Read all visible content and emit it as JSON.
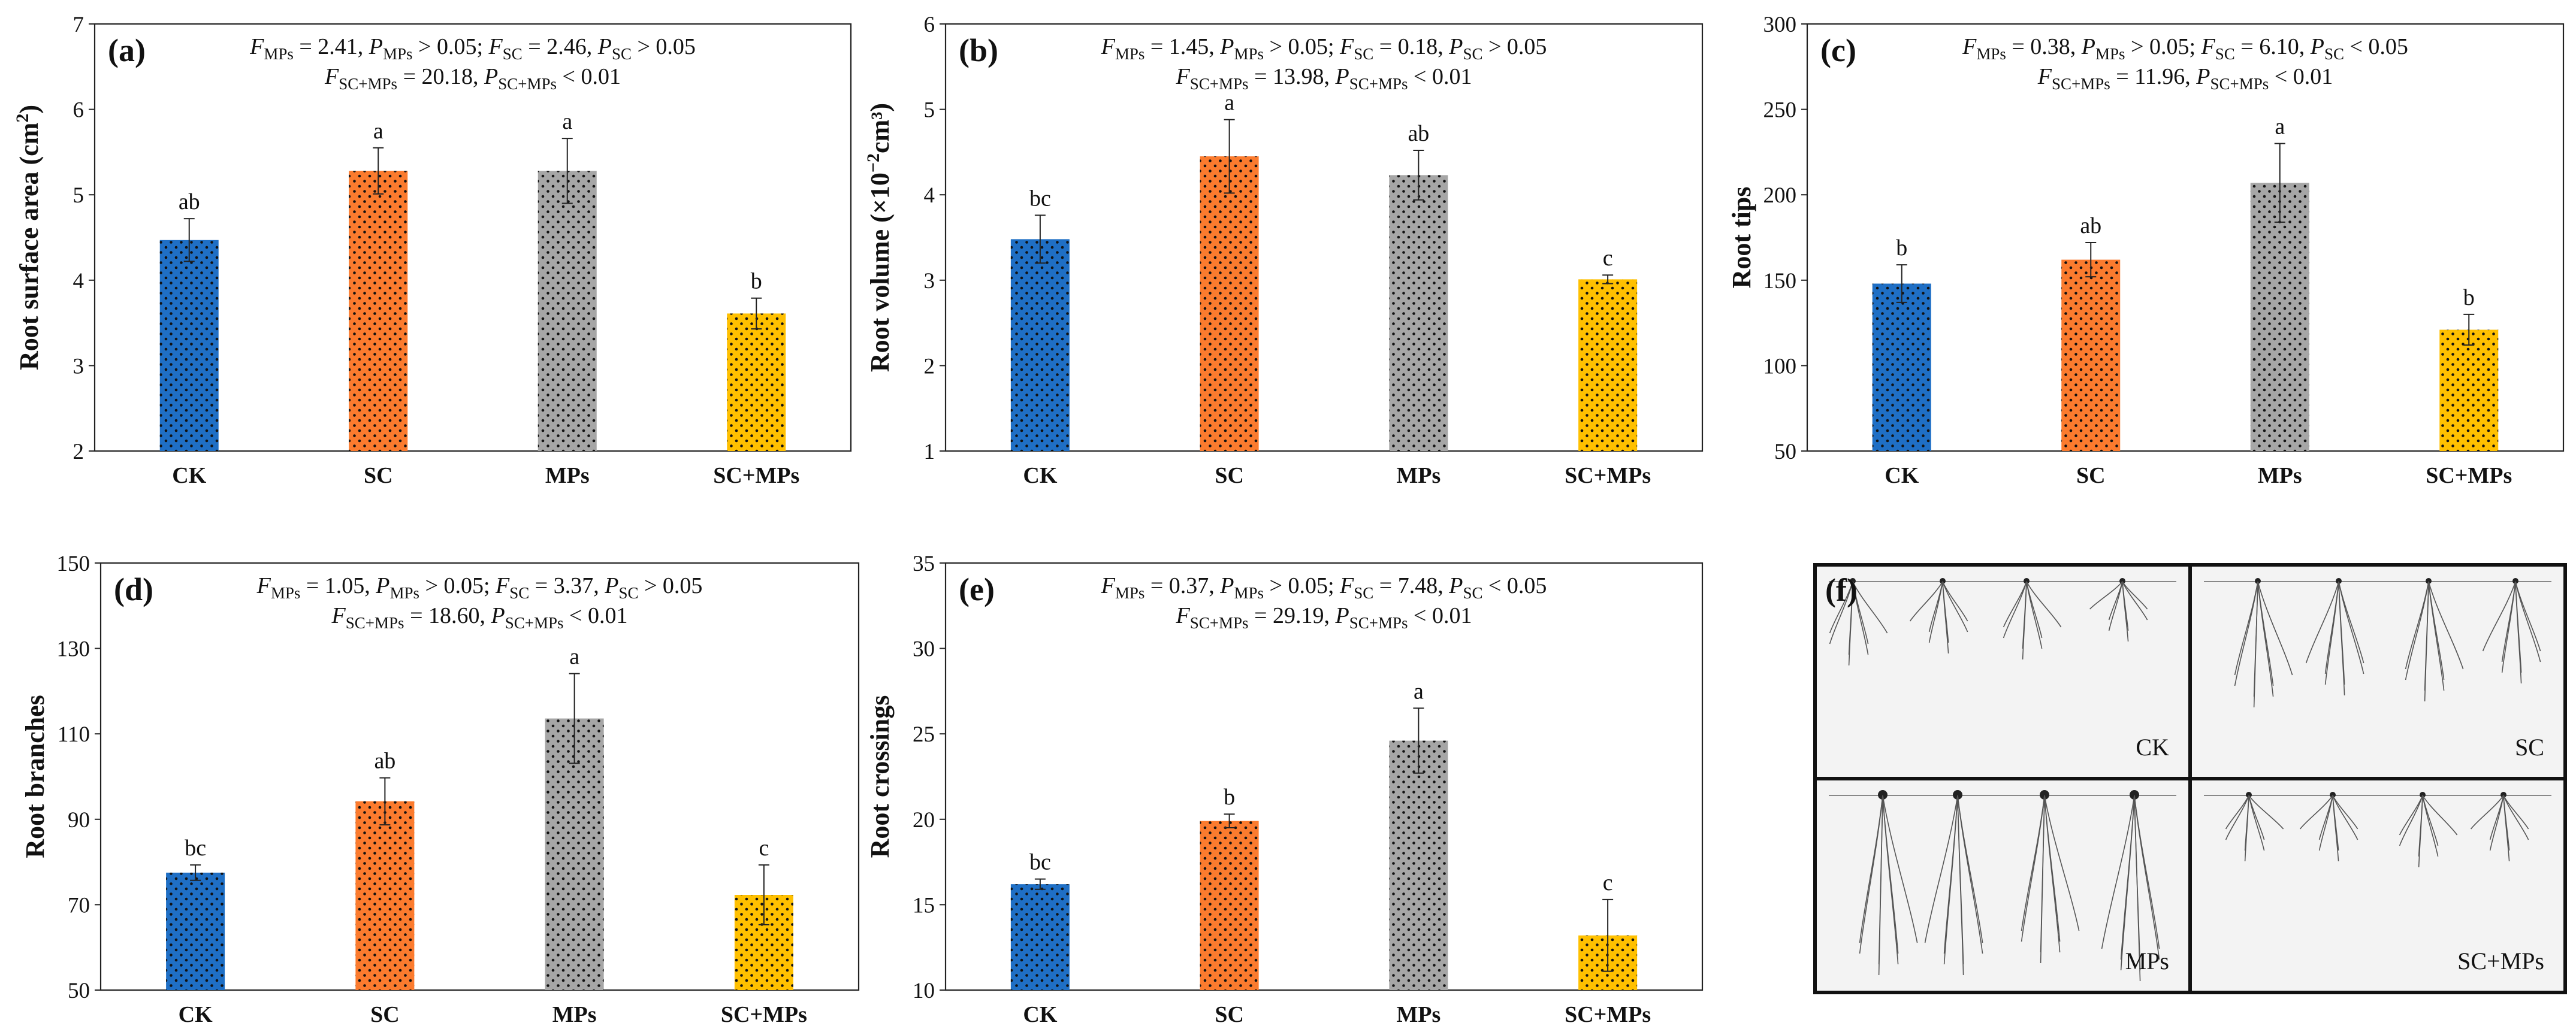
{
  "colors": {
    "CK": "#1f6fc5",
    "SC": "#fb7b2e",
    "MPs": "#a6a6a6",
    "SC+MPs": "#ffc000"
  },
  "chart_data": [
    {
      "type": "bar",
      "panel": "(a)",
      "categories": [
        "CK",
        "SC",
        "MPs",
        "SC+MPs"
      ],
      "values": [
        4.47,
        5.28,
        5.28,
        3.61
      ],
      "errors": [
        0.25,
        0.27,
        0.38,
        0.18
      ],
      "letters": [
        "ab",
        "a",
        "a",
        "b"
      ],
      "ylabel_main": "Root surface area (cm",
      "ylabel_sup": "2",
      "ylabel_tail": ")",
      "ylim": [
        2,
        7
      ],
      "yticks": [
        "2",
        "3",
        "4",
        "5",
        "6",
        "7"
      ],
      "stats": [
        [
          [
            "F",
            "i"
          ],
          [
            "MPs",
            "sub"
          ],
          [
            " = 2.41, ",
            "n"
          ],
          [
            "P",
            "i"
          ],
          [
            "MPs",
            "sub"
          ],
          [
            " > 0.05; ",
            "n"
          ],
          [
            "F",
            "i"
          ],
          [
            "SC",
            "sub"
          ],
          [
            " = 2.46, ",
            "n"
          ],
          [
            "P",
            "i"
          ],
          [
            "SC",
            "sub"
          ],
          [
            " > 0.05",
            "n"
          ]
        ],
        [
          [
            "F",
            "i"
          ],
          [
            "SC+MPs",
            "sub"
          ],
          [
            " = 20.18, ",
            "n"
          ],
          [
            "P",
            "i"
          ],
          [
            "SC+MPs",
            "sub"
          ],
          [
            " < 0.01",
            "n"
          ]
        ]
      ]
    },
    {
      "type": "bar",
      "panel": "(b)",
      "categories": [
        "CK",
        "SC",
        "MPs",
        "SC+MPs"
      ],
      "values": [
        3.48,
        4.45,
        4.23,
        3.01
      ],
      "errors": [
        0.28,
        0.43,
        0.29,
        0.05
      ],
      "letters": [
        "bc",
        "a",
        "ab",
        "c"
      ],
      "ylabel_main": "Root volume (×10",
      "ylabel_sup": "−2",
      "ylabel_tail": "cm³)",
      "ylim": [
        1,
        6
      ],
      "yticks": [
        "1",
        "2",
        "3",
        "4",
        "5",
        "6"
      ],
      "stats": [
        [
          [
            "F",
            "i"
          ],
          [
            "MPs",
            "sub"
          ],
          [
            " = 1.45, ",
            "n"
          ],
          [
            "P",
            "i"
          ],
          [
            "MPs",
            "sub"
          ],
          [
            " > 0.05; ",
            "n"
          ],
          [
            "F",
            "i"
          ],
          [
            "SC",
            "sub"
          ],
          [
            " = 0.18, ",
            "n"
          ],
          [
            "P",
            "i"
          ],
          [
            "SC",
            "sub"
          ],
          [
            " > 0.05",
            "n"
          ]
        ],
        [
          [
            "F",
            "i"
          ],
          [
            "SC+MPs",
            "sub"
          ],
          [
            " = 13.98, ",
            "n"
          ],
          [
            "P",
            "i"
          ],
          [
            "SC+MPs",
            "sub"
          ],
          [
            " < 0.01",
            "n"
          ]
        ]
      ]
    },
    {
      "type": "bar",
      "panel": "(c)",
      "categories": [
        "CK",
        "SC",
        "MPs",
        "SC+MPs"
      ],
      "values": [
        148,
        162,
        207,
        121
      ],
      "errors": [
        11,
        10,
        23,
        9
      ],
      "letters": [
        "b",
        "ab",
        "a",
        "b"
      ],
      "ylabel_main": "Root tips",
      "ylabel_sup": "",
      "ylabel_tail": "",
      "ylim": [
        50,
        300
      ],
      "yticks": [
        "50",
        "100",
        "150",
        "200",
        "250",
        "300"
      ],
      "stats": [
        [
          [
            "F",
            "i"
          ],
          [
            "MPs",
            "sub"
          ],
          [
            " = 0.38, ",
            "n"
          ],
          [
            "P",
            "i"
          ],
          [
            "MPs",
            "sub"
          ],
          [
            " > 0.05; ",
            "n"
          ],
          [
            "F",
            "i"
          ],
          [
            "SC",
            "sub"
          ],
          [
            " = 6.10, ",
            "n"
          ],
          [
            "P",
            "i"
          ],
          [
            "SC",
            "sub"
          ],
          [
            " < 0.05",
            "n"
          ]
        ],
        [
          [
            "F",
            "i"
          ],
          [
            "SC+MPs",
            "sub"
          ],
          [
            " = 11.96, ",
            "n"
          ],
          [
            "P",
            "i"
          ],
          [
            "SC+MPs",
            "sub"
          ],
          [
            " < 0.01",
            "n"
          ]
        ]
      ]
    },
    {
      "type": "bar",
      "panel": "(d)",
      "categories": [
        "CK",
        "SC",
        "MPs",
        "SC+MPs"
      ],
      "values": [
        77.5,
        94.2,
        113.6,
        72.3
      ],
      "errors": [
        1.8,
        5.5,
        10.5,
        7.0
      ],
      "letters": [
        "bc",
        "ab",
        "a",
        "c"
      ],
      "ylabel_main": "Root branches",
      "ylabel_sup": "",
      "ylabel_tail": "",
      "ylim": [
        50,
        150
      ],
      "yticks": [
        "50",
        "70",
        "90",
        "110",
        "130",
        "150"
      ],
      "stats": [
        [
          [
            "F",
            "i"
          ],
          [
            "MPs",
            "sub"
          ],
          [
            " = 1.05, ",
            "n"
          ],
          [
            "P",
            "i"
          ],
          [
            "MPs",
            "sub"
          ],
          [
            " > 0.05; ",
            "n"
          ],
          [
            "F",
            "i"
          ],
          [
            "SC",
            "sub"
          ],
          [
            " = 3.37, ",
            "n"
          ],
          [
            "P",
            "i"
          ],
          [
            "SC",
            "sub"
          ],
          [
            " > 0.05",
            "n"
          ]
        ],
        [
          [
            "F",
            "i"
          ],
          [
            "SC+MPs",
            "sub"
          ],
          [
            " = 18.60, ",
            "n"
          ],
          [
            "P",
            "i"
          ],
          [
            "SC+MPs",
            "sub"
          ],
          [
            " < 0.01",
            "n"
          ]
        ]
      ]
    },
    {
      "type": "bar",
      "panel": "(e)",
      "categories": [
        "CK",
        "SC",
        "MPs",
        "SC+MPs"
      ],
      "values": [
        16.2,
        19.9,
        24.6,
        13.2
      ],
      "errors": [
        0.3,
        0.4,
        1.9,
        2.1
      ],
      "letters": [
        "bc",
        "b",
        "a",
        "c"
      ],
      "ylabel_main": "Root crossings",
      "ylabel_sup": "",
      "ylabel_tail": "",
      "ylim": [
        10,
        35
      ],
      "yticks": [
        "10",
        "15",
        "20",
        "25",
        "30",
        "35"
      ],
      "stats": [
        [
          [
            "F",
            "i"
          ],
          [
            "MPs",
            "sub"
          ],
          [
            " = 0.37, ",
            "n"
          ],
          [
            "P",
            "i"
          ],
          [
            "MPs",
            "sub"
          ],
          [
            " > 0.05; ",
            "n"
          ],
          [
            "F",
            "i"
          ],
          [
            "SC",
            "sub"
          ],
          [
            " = 7.48, ",
            "n"
          ],
          [
            "P",
            "i"
          ],
          [
            "SC",
            "sub"
          ],
          [
            " < 0.05",
            "n"
          ]
        ],
        [
          [
            "F",
            "i"
          ],
          [
            "SC+MPs",
            "sub"
          ],
          [
            " = 29.19, ",
            "n"
          ],
          [
            "P",
            "i"
          ],
          [
            "SC+MPs",
            "sub"
          ],
          [
            " < 0.01",
            "n"
          ]
        ]
      ]
    }
  ],
  "photo_panel": {
    "label": "(f)",
    "cells": [
      "CK",
      "SC",
      "MPs",
      "SC+MPs"
    ]
  }
}
